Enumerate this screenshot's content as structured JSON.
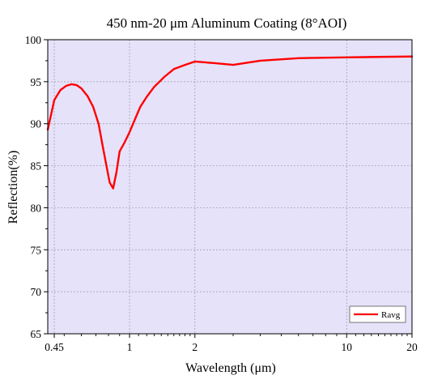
{
  "chart_data": {
    "type": "line",
    "title": "450 nm-20 μm Aluminum Coating (8°AOI)",
    "xlabel": "Wavelength (μm)",
    "ylabel": "Reflection(%)",
    "xscale": "log",
    "xlim": [
      0.42,
      20
    ],
    "ylim": [
      65,
      100
    ],
    "xticks": [
      {
        "value": 0.45,
        "label": "0.45"
      },
      {
        "value": 1,
        "label": "1"
      },
      {
        "value": 2,
        "label": "2"
      },
      {
        "value": 10,
        "label": "10"
      },
      {
        "value": 20,
        "label": "20"
      }
    ],
    "yticks": [
      65,
      70,
      75,
      80,
      85,
      90,
      95,
      100
    ],
    "grid": true,
    "legend_position": "bottom-right",
    "plot_background": "#e6e2fa",
    "series": [
      {
        "name": "Ravg",
        "color": "#ff0000",
        "x": [
          0.42,
          0.45,
          0.48,
          0.51,
          0.54,
          0.57,
          0.6,
          0.64,
          0.68,
          0.72,
          0.75,
          0.78,
          0.81,
          0.84,
          0.87,
          0.9,
          0.95,
          1.0,
          1.05,
          1.12,
          1.2,
          1.3,
          1.45,
          1.6,
          1.8,
          2.0,
          2.5,
          3.0,
          4.0,
          6.0,
          10.0,
          14.0,
          20.0
        ],
        "y": [
          89.3,
          92.8,
          94.0,
          94.5,
          94.7,
          94.6,
          94.2,
          93.3,
          92.0,
          90.0,
          87.5,
          85.2,
          83.0,
          82.3,
          84.2,
          86.7,
          87.8,
          89.0,
          90.3,
          92.0,
          93.2,
          94.4,
          95.6,
          96.5,
          97.0,
          97.4,
          97.2,
          97.0,
          97.5,
          97.8,
          97.9,
          97.95,
          98.0
        ]
      }
    ]
  }
}
